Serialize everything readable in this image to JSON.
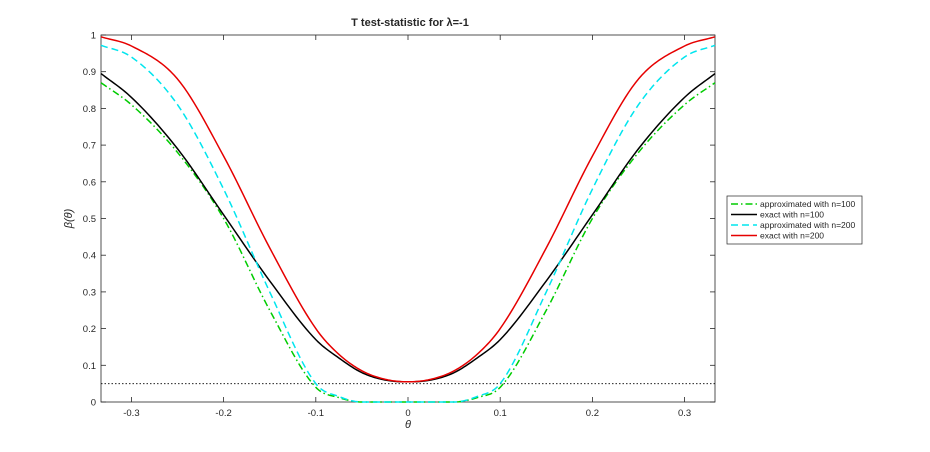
{
  "chart_data": {
    "type": "line",
    "title": "T test-statistic for λ=-1",
    "xlabel": "θ",
    "ylabel": "β(θ)",
    "xlim": [
      -0.333,
      0.333
    ],
    "ylim": [
      0,
      1
    ],
    "xticks": [
      -0.3,
      -0.2,
      -0.1,
      0,
      0.1,
      0.2,
      0.3
    ],
    "xtick_labels": [
      "-0.3",
      "-0.2",
      "-0.1",
      "0",
      "0.1",
      "0.2",
      "0.3"
    ],
    "yticks": [
      0,
      0.1,
      0.2,
      0.3,
      0.4,
      0.5,
      0.6,
      0.7,
      0.8,
      0.9,
      1
    ],
    "ytick_labels": [
      "0",
      "0.1",
      "0.2",
      "0.3",
      "0.4",
      "0.5",
      "0.6",
      "0.7",
      "0.8",
      "0.9",
      "1"
    ],
    "grid": false,
    "legend_position": "outside-right",
    "reference_line": {
      "y": 0.05,
      "style": "dotted",
      "color": "#000000"
    },
    "x": [
      -0.333,
      -0.3,
      -0.25,
      -0.2,
      -0.15,
      -0.1,
      -0.075,
      -0.05,
      -0.025,
      0,
      0.025,
      0.05,
      0.075,
      0.1,
      0.15,
      0.2,
      0.25,
      0.3,
      0.333
    ],
    "series": [
      {
        "name": "approximated with n=100",
        "color": "#00cc00",
        "dash": "dashdot",
        "values": [
          0.87,
          0.81,
          0.68,
          0.5,
          0.25,
          0.04,
          0.012,
          0.0,
          0.0,
          0.0,
          0.0,
          0.0,
          0.012,
          0.04,
          0.25,
          0.5,
          0.68,
          0.81,
          0.87
        ]
      },
      {
        "name": "exact with n=100",
        "color": "#000000",
        "dash": "solid",
        "values": [
          0.895,
          0.83,
          0.69,
          0.51,
          0.33,
          0.17,
          0.12,
          0.08,
          0.06,
          0.055,
          0.06,
          0.08,
          0.12,
          0.17,
          0.33,
          0.51,
          0.69,
          0.83,
          0.895
        ]
      },
      {
        "name": "approximated with n=200",
        "color": "#00e5ee",
        "dash": "dashed",
        "values": [
          0.972,
          0.94,
          0.81,
          0.58,
          0.3,
          0.05,
          0.015,
          0.0,
          0.0,
          0.0,
          0.0,
          0.0,
          0.015,
          0.05,
          0.3,
          0.58,
          0.81,
          0.94,
          0.972
        ]
      },
      {
        "name": "exact with n=200",
        "color": "#e60000",
        "dash": "solid",
        "values": [
          0.995,
          0.97,
          0.88,
          0.67,
          0.42,
          0.2,
          0.13,
          0.085,
          0.062,
          0.055,
          0.062,
          0.085,
          0.13,
          0.2,
          0.42,
          0.67,
          0.88,
          0.97,
          0.995
        ]
      }
    ]
  }
}
